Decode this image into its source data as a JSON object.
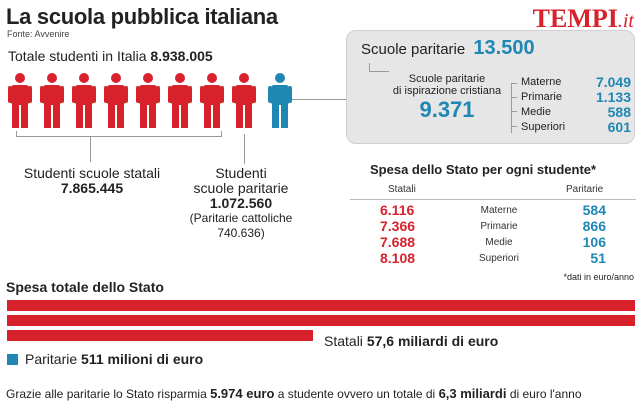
{
  "header": {
    "title": "La scuola pubblica italiana",
    "source": "Fonte: Avvenire",
    "logo_main": "TEMPI",
    "logo_suffix": ".it"
  },
  "totale": {
    "label": "Totale studenti in Italia",
    "value": "8.938.005"
  },
  "figures": {
    "statali_count": 8,
    "paritarie_count": 1,
    "statali_color": "#d7222b",
    "paritarie_color": "#1f87b4"
  },
  "statali": {
    "label": "Studenti scuole statali",
    "value": "7.865.445"
  },
  "paritarie": {
    "label_1": "Studenti",
    "label_2": "scuole paritarie",
    "value": "1.072.560",
    "note_1": "(Paritarie cattoliche",
    "note_2": "740.636)"
  },
  "box": {
    "title": "Scuole paritarie",
    "value": "13.500",
    "sub_1": "Scuole paritarie",
    "sub_2": "di ispirazione cristiana",
    "sub_value": "9.371",
    "items": [
      {
        "label": "Materne",
        "value": "7.049"
      },
      {
        "label": "Primarie",
        "value": "1.133"
      },
      {
        "label": "Medie",
        "value": "588"
      },
      {
        "label": "Superiori",
        "value": "601"
      }
    ]
  },
  "spesa": {
    "title": "Spesa dello Stato per ogni studente*",
    "col_statali": "Statali",
    "col_paritarie": "Paritarie",
    "rows": [
      {
        "statali": "6.116",
        "cat": "Materne",
        "paritarie": "584"
      },
      {
        "statali": "7.366",
        "cat": "Primarie",
        "paritarie": "866"
      },
      {
        "statali": "7.688",
        "cat": "Medie",
        "paritarie": "106"
      },
      {
        "statali": "8.108",
        "cat": "Superiori",
        "paritarie": "51"
      }
    ],
    "note": "*dati in euro/anno"
  },
  "totale_spesa": {
    "title": "Spesa totale dello Stato",
    "statali_label": "Statali",
    "statali_value": "57,6 miliardi di euro",
    "paritarie_label": "Paritarie",
    "paritarie_value": "511 milioni di euro"
  },
  "footer": {
    "t1": "Grazie alle paritarie lo Stato risparmia",
    "v1": "5.974 euro",
    "t2": "a studente ovvero un totale di",
    "v2": "6,3 miliardi",
    "t3": "di euro l'anno"
  }
}
